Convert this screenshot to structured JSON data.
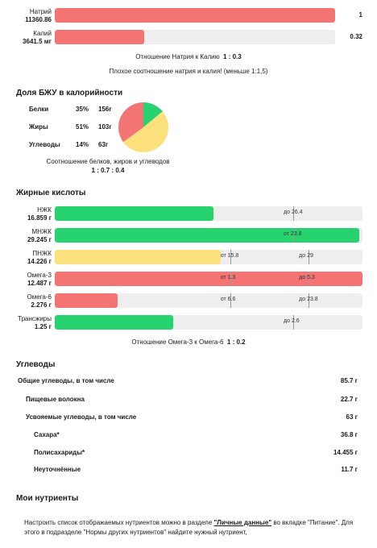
{
  "sodium_potassium": {
    "sodium": {
      "name": "Натрий",
      "value": "11360.86",
      "ratio": "1",
      "fill_fraction": 1.0
    },
    "potassium": {
      "name": "Калий",
      "value": "3641.5 мг",
      "ratio": "0.32",
      "fill_fraction": 0.32
    },
    "ratio_label": "Отношение Натрия к Калию",
    "ratio_value": "1 : 0.3",
    "note": "Плохое соотношение натрия и калия! (меньше 1:1,5)"
  },
  "bju": {
    "title": "Доля БЖУ в калорийности",
    "rows": [
      {
        "name": "Белки",
        "percent": "35%",
        "grams": "156г",
        "share": 35,
        "color": "#f47474"
      },
      {
        "name": "Жиры",
        "percent": "51%",
        "grams": "103г",
        "share": 51,
        "color": "#fde17c"
      },
      {
        "name": "Углеводы",
        "percent": "14%",
        "grams": "63г",
        "share": 14,
        "color": "#27d36e"
      }
    ],
    "ratio_label": "Соотношение белков, жиров и углеводов",
    "ratio_value": "1 : 0.7 : 0.4"
  },
  "fatty_acids": {
    "title": "Жирные кислоты",
    "rows": [
      {
        "name": "НЖК",
        "value": "16.859 г",
        "fill_fraction": 0.515,
        "color": "#27d36e",
        "markers": [
          {
            "text": "до 26.4",
            "pos": 0.775
          }
        ]
      },
      {
        "name": "МНЖК",
        "value": "29.245 г",
        "fill_fraction": 0.99,
        "color": "#27d36e",
        "markers": [
          {
            "text": "от 23.8",
            "pos": 0.775
          }
        ]
      },
      {
        "name": "ПНЖК",
        "value": "14.226 г",
        "fill_fraction": 0.54,
        "color": "#fde17c",
        "markers": [
          {
            "text": "от 15.8",
            "pos": 0.57
          },
          {
            "text": "до 29",
            "pos": 0.825
          }
        ]
      },
      {
        "name": "Омега-3",
        "value": "12.487 г",
        "fill_fraction": 1.0,
        "color": "#f47474",
        "markers": [
          {
            "text": "от 1.3",
            "pos": 0.57
          },
          {
            "text": "до 5.3",
            "pos": 0.825
          }
        ]
      },
      {
        "name": "Омега-6",
        "value": "2.276 г",
        "fill_fraction": 0.205,
        "color": "#f47474",
        "markers": [
          {
            "text": "от 6.6",
            "pos": 0.57
          },
          {
            "text": "до 23.8",
            "pos": 0.825
          }
        ]
      },
      {
        "name": "Трансжиры",
        "value": "1.25 г",
        "fill_fraction": 0.385,
        "color": "#27d36e",
        "markers": [
          {
            "text": "до 2.6",
            "pos": 0.775
          }
        ]
      }
    ],
    "ratio_label": "Отношение Омега-3 к Омега-6",
    "ratio_value": "1 : 0.2"
  },
  "carbs": {
    "title": "Углеводы",
    "rows": [
      {
        "name": "Общие углеводы, в том числе",
        "value": "85.7 г",
        "level": 0
      },
      {
        "name": "Пищевые волокна",
        "value": "22.7 г",
        "level": 1
      },
      {
        "name": "Усвояемые углеводы, в том числе",
        "value": "63 г",
        "level": 1
      },
      {
        "name": "Сахара*",
        "value": "36.8 г",
        "level": 2
      },
      {
        "name": "Полисахариды*",
        "value": "14.455 г",
        "level": 2
      },
      {
        "name": "Неуточнённые",
        "value": "11.7 г",
        "level": 2
      }
    ]
  },
  "my_nutrients": {
    "title": "Мои нутриенты",
    "text_before": "Настроить список отображаемых нутриентов можно в разделе ",
    "link": "\"Личные данные\"",
    "text_after": " во вкладке \"Питание\". Для этого в подразделе \"Нормы других нутриентов\" найдите нужный нутриент,"
  }
}
